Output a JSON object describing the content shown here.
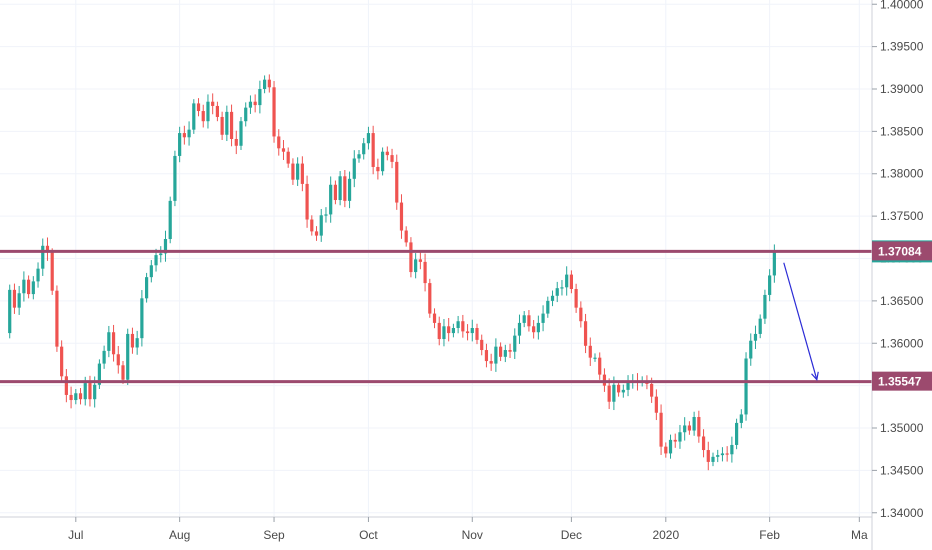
{
  "chart_data": {
    "type": "candlestick",
    "title": "",
    "xlabel": "",
    "ylabel": "",
    "ylim": [
      1.3395,
      1.4005
    ],
    "y_ticks": [
      "1.40000",
      "1.39500",
      "1.39000",
      "1.38500",
      "1.38000",
      "1.37500",
      "1.37000",
      "1.36500",
      "1.36000",
      "1.35500",
      "1.35000",
      "1.34500",
      "1.34000"
    ],
    "x_ticks": [
      {
        "label": "Jul",
        "index": 15
      },
      {
        "label": "Aug",
        "index": 37
      },
      {
        "label": "Sep",
        "index": 57
      },
      {
        "label": "Oct",
        "index": 77
      },
      {
        "label": "Nov",
        "index": 99
      },
      {
        "label": "Dec",
        "index": 120
      },
      {
        "label": "2020",
        "index": 140
      },
      {
        "label": "Feb",
        "index": 162
      },
      {
        "label": "Ma",
        "index": 181
      }
    ],
    "levels": [
      {
        "label": "1.37084",
        "value": 1.37084,
        "color": "#9c4a6e"
      },
      {
        "label": "1.35547",
        "value": 1.35547,
        "color": "#9c4a6e"
      }
    ],
    "projection_arrow": {
      "from": {
        "index": 165,
        "value": 1.3695
      },
      "to": {
        "index": 172,
        "value": 1.3557
      },
      "color": "#2b2bd6"
    },
    "colors": {
      "up": "#26a69a",
      "down": "#ef5350",
      "grid": "#f0f3fa",
      "level_badge": "#9c4a6e",
      "last_price_badge": "#26a69a"
    },
    "closes": [
      1.3612,
      1.3663,
      1.3642,
      1.3659,
      1.3675,
      1.3658,
      1.3673,
      1.3688,
      1.3715,
      1.3707,
      1.3662,
      1.3596,
      1.3561,
      1.3539,
      1.3533,
      1.3541,
      1.3534,
      1.3553,
      1.3534,
      1.3551,
      1.3576,
      1.3591,
      1.3613,
      1.3587,
      1.3574,
      1.3557,
      1.3611,
      1.3595,
      1.3606,
      1.3653,
      1.3678,
      1.3692,
      1.3704,
      1.3706,
      1.3723,
      1.3768,
      1.3821,
      1.3848,
      1.3843,
      1.3852,
      1.3883,
      1.3874,
      1.3862,
      1.3885,
      1.388,
      1.3867,
      1.3846,
      1.3873,
      1.3841,
      1.3833,
      1.3862,
      1.3878,
      1.3885,
      1.3881,
      1.39,
      1.3911,
      1.3902,
      1.3844,
      1.383,
      1.3826,
      1.3812,
      1.3793,
      1.3812,
      1.3788,
      1.3746,
      1.3732,
      1.3727,
      1.3751,
      1.3752,
      1.3787,
      1.3769,
      1.3797,
      1.3768,
      1.3794,
      1.3818,
      1.3823,
      1.3836,
      1.3848,
      1.3808,
      1.3803,
      1.3826,
      1.3822,
      1.3814,
      1.3766,
      1.3733,
      1.3719,
      1.3684,
      1.3699,
      1.3696,
      1.3671,
      1.3635,
      1.3624,
      1.3605,
      1.362,
      1.3612,
      1.3618,
      1.3626,
      1.3614,
      1.3612,
      1.3618,
      1.3604,
      1.3592,
      1.3579,
      1.3576,
      1.3596,
      1.3584,
      1.3592,
      1.359,
      1.3609,
      1.3624,
      1.3633,
      1.362,
      1.3613,
      1.3624,
      1.3635,
      1.365,
      1.3656,
      1.3665,
      1.3666,
      1.3681,
      1.3664,
      1.3642,
      1.3626,
      1.3597,
      1.3583,
      1.3583,
      1.3563,
      1.355,
      1.3531,
      1.3551,
      1.3542,
      1.3545,
      1.3555,
      1.3555,
      1.3554,
      1.3556,
      1.3552,
      1.3537,
      1.3518,
      1.3478,
      1.347,
      1.3486,
      1.3484,
      1.3495,
      1.3503,
      1.3497,
      1.3513,
      1.349,
      1.3474,
      1.346,
      1.3466,
      1.3468,
      1.347,
      1.3469,
      1.348,
      1.3506,
      1.3516,
      1.3582,
      1.3603,
      1.3611,
      1.3629,
      1.3657,
      1.368,
      1.3708
    ]
  }
}
